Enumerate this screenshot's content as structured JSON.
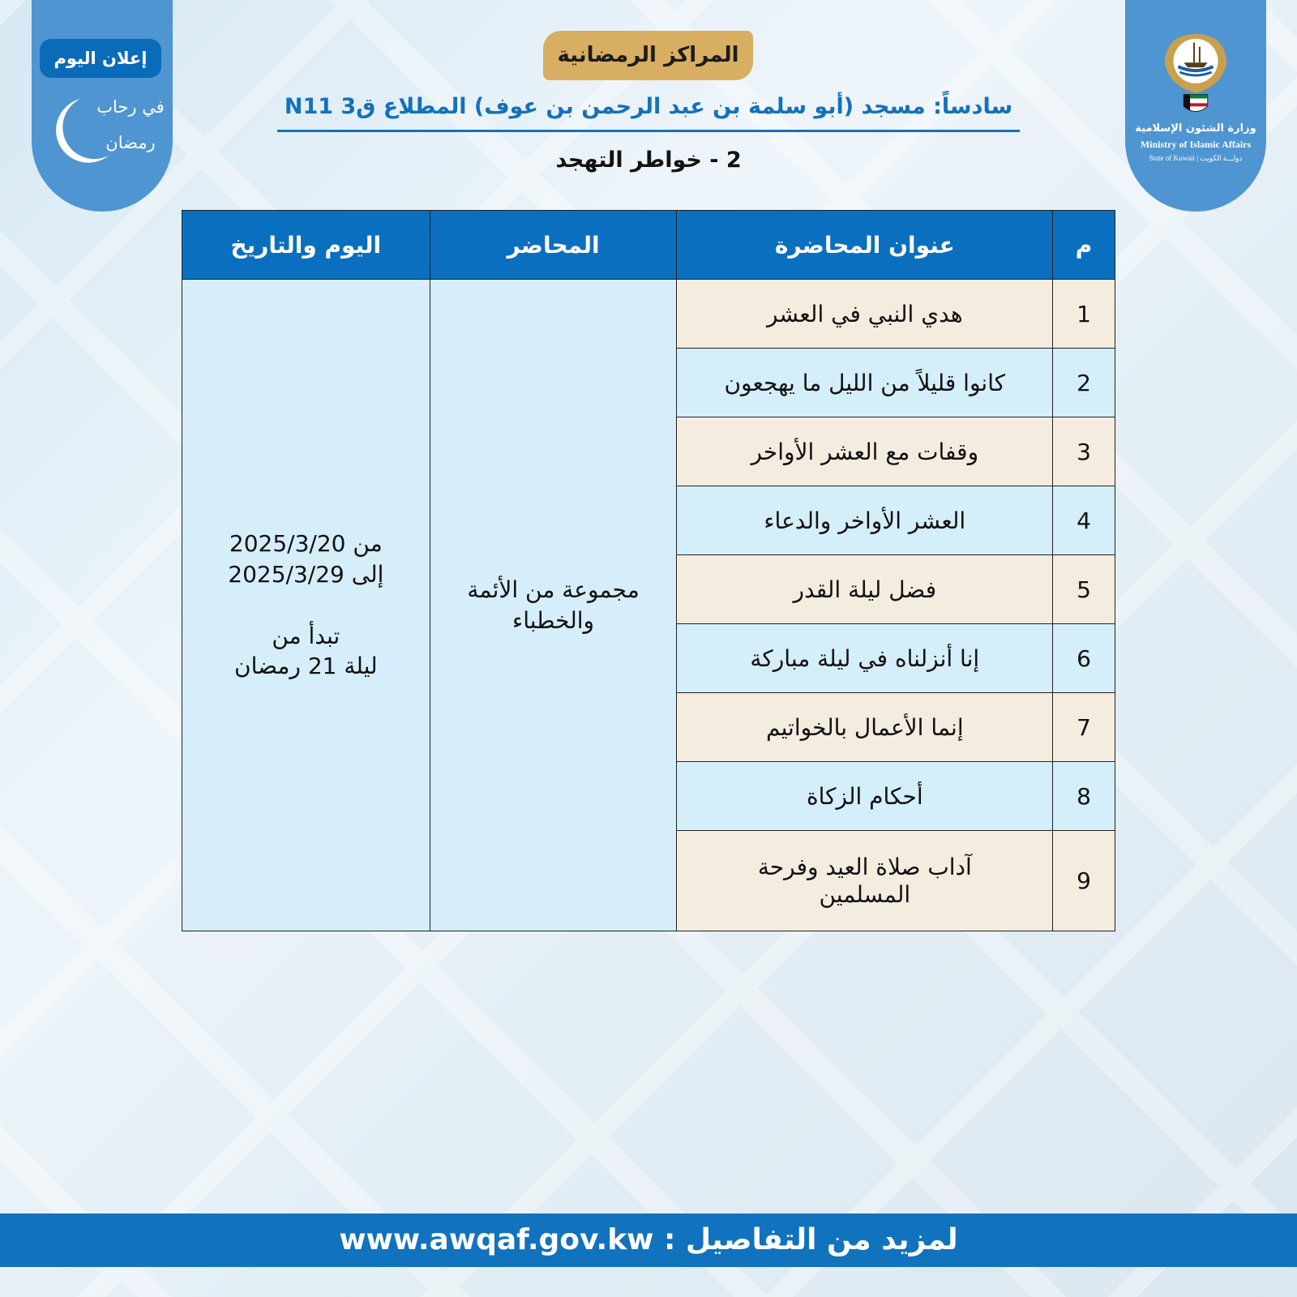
{
  "badge_left": {
    "label": "إعلان اليوم",
    "logo_text": "في رحاب رمضان"
  },
  "badge_right": {
    "ministry_ar": "وزارة الشئون الإسلامية",
    "ministry_en": "Ministry of Islamic Affairs",
    "state": "State of Kuwait  |  دولـــة الكويت",
    "emblem_text": "دولة الكويت"
  },
  "header": {
    "pill": "المراكز الرمضانية",
    "subtitle": "سادساً: مسجد (أبو سلمة بن عبد الرحمن بن عوف) المطلاع ق3 N11",
    "section": "2 - خواطر التهجد"
  },
  "table": {
    "headers": {
      "num": "م",
      "title": "عنوان المحاضرة",
      "lecturer": "المحاضر",
      "date": "اليوم والتاريخ"
    },
    "rows": [
      {
        "num": "1",
        "title": "هدي النبي في العشر"
      },
      {
        "num": "2",
        "title": "كانوا قليلاً من الليل ما يهجعون"
      },
      {
        "num": "3",
        "title": "وقفات مع العشر الأواخر"
      },
      {
        "num": "4",
        "title": "العشر الأواخر والدعاء"
      },
      {
        "num": "5",
        "title": "فضل ليلة القدر"
      },
      {
        "num": "6",
        "title": "إنا أنزلناه في ليلة مباركة"
      },
      {
        "num": "7",
        "title": "إنما الأعمال بالخواتيم"
      },
      {
        "num": "8",
        "title": "أحكام الزكاة"
      },
      {
        "num": "9",
        "title": "آداب صلاة العيد وفرحة المسلمين"
      }
    ],
    "lecturer": "مجموعة من الأئمة والخطباء",
    "date": {
      "from": "من 2025/3/20",
      "to": "إلى 2025/3/29",
      "starts": "تبدأ من",
      "night": "ليلة 21 رمضان"
    }
  },
  "footer": {
    "label": "لمزيد من التفاصيل :",
    "url": "www.awqaf.gov.kw"
  }
}
